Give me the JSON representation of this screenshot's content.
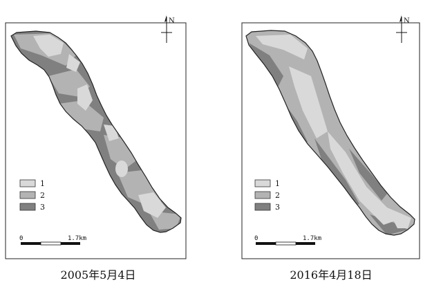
{
  "maps": [
    {
      "date": "2005年5月4日"
    },
    {
      "date": "2016年4月18日"
    }
  ],
  "north_label": "N",
  "legend": [
    {
      "label": "1",
      "color": "#d9d9d9"
    },
    {
      "label": "2",
      "color": "#b3b3b3"
    },
    {
      "label": "3",
      "color": "#808080"
    }
  ],
  "scale": {
    "start_label": "0",
    "end_label": "1.7km"
  }
}
